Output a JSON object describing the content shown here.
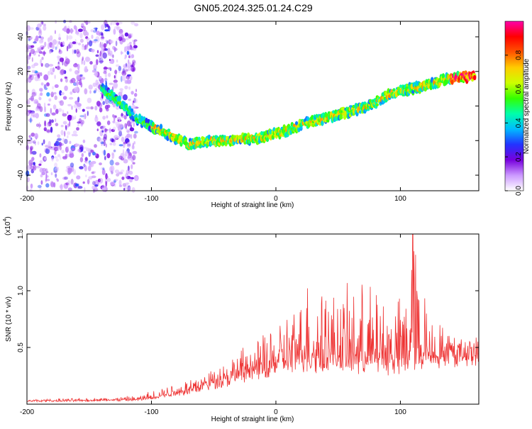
{
  "title": "GN05.2024.325.01.24.C29",
  "chart_data": [
    {
      "type": "heatmap",
      "xlabel": "Height of straight line (km)",
      "ylabel": "Frequency (Hz)",
      "xlim": [
        -200,
        163
      ],
      "ylim": [
        -49,
        49
      ],
      "xticks": [
        -200,
        -100,
        0,
        100
      ],
      "yticks": [
        -40,
        -20,
        0,
        20,
        40
      ],
      "grid": false,
      "ridge": {
        "x": [
          -140,
          -130,
          -120,
          -110,
          -100,
          -90,
          -80,
          -70,
          -60,
          -50,
          -40,
          -30,
          -20,
          -10,
          0,
          10,
          20,
          30,
          40,
          50,
          60,
          70,
          80,
          90,
          100,
          110,
          120,
          130,
          140,
          150,
          160
        ],
        "y": [
          10,
          5,
          -2,
          -8,
          -12,
          -15,
          -19,
          -22,
          -21,
          -20,
          -20,
          -19,
          -19,
          -18,
          -16,
          -14,
          -11,
          -9,
          -7,
          -5,
          -3,
          -1,
          2,
          6,
          9,
          10,
          12,
          14,
          16,
          17,
          17
        ]
      },
      "colorbar": {
        "label": "Normalized spectral amplitude",
        "range": [
          0,
          1
        ],
        "ticks": [
          "0.0",
          "0.2",
          "0.4",
          "0.6",
          "0.8"
        ],
        "colors": [
          "#ffffff",
          "#cc99ff",
          "#7700dd",
          "#2233ff",
          "#00bbff",
          "#00ffaa",
          "#33ff00",
          "#ccff00",
          "#ffcc00",
          "#ff5500",
          "#ff0000",
          "#ff00aa"
        ]
      }
    },
    {
      "type": "line",
      "xlabel": "Height of straight line (km)",
      "ylabel": "SNR (10 * v/v)",
      "y_multiplier": "(x10",
      "y_multiplier_exp": "4",
      "y_multiplier_close": ")",
      "xlim": [
        -200,
        163
      ],
      "ylim": [
        0,
        15000
      ],
      "xticks": [
        -200,
        -100,
        0,
        100
      ],
      "yticks": [
        5000,
        10000,
        15000
      ],
      "ytick_labels": [
        "0.5",
        "1.0",
        "1.5"
      ],
      "color": "#ee3333",
      "envelope": {
        "x": [
          -200,
          -150,
          -110,
          -100,
          -90,
          -80,
          -70,
          -60,
          -50,
          -40,
          -30,
          -20,
          -10,
          0,
          10,
          20,
          25,
          30,
          40,
          50,
          60,
          70,
          80,
          90,
          100,
          105,
          110,
          120,
          130,
          140,
          150,
          163
        ],
        "baseline": [
          250,
          300,
          350,
          500,
          700,
          900,
          1100,
          1400,
          1700,
          2000,
          2300,
          2600,
          2900,
          3200,
          3400,
          3600,
          3600,
          3600,
          3500,
          3500,
          3400,
          3400,
          3300,
          3300,
          3400,
          3500,
          3600,
          3800,
          4000,
          4200,
          4400,
          4500
        ],
        "peak": [
          400,
          500,
          700,
          1200,
          1500,
          1800,
          2200,
          2600,
          3200,
          3800,
          4500,
          5000,
          5800,
          6500,
          8000,
          9000,
          11500,
          9500,
          10500,
          9500,
          10000,
          10500,
          10000,
          9500,
          9000,
          11000,
          15000,
          9500,
          7000,
          5500,
          5000,
          5000
        ]
      }
    }
  ]
}
